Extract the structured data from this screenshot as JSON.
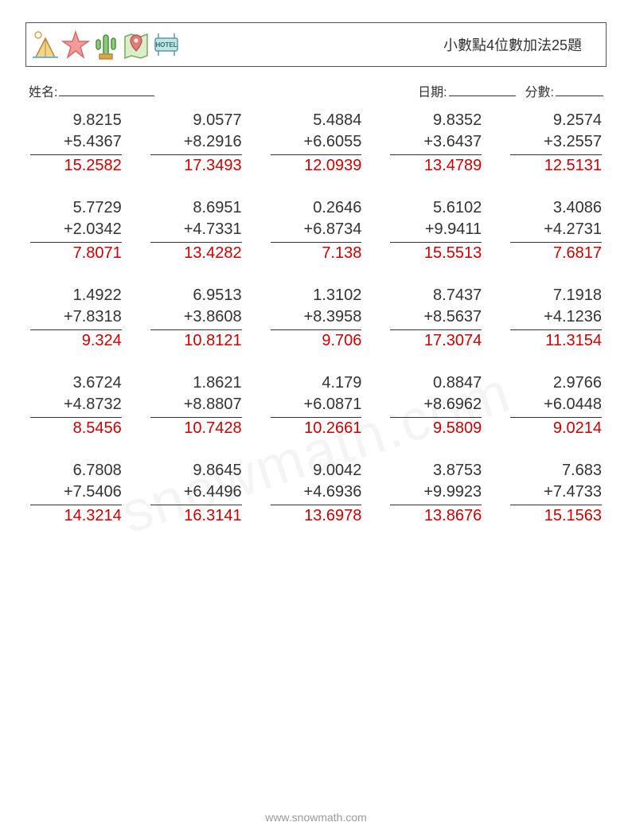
{
  "header": {
    "title": "小數點4位數加法25題"
  },
  "info": {
    "name_label": "姓名:",
    "date_label": "日期:",
    "score_label": "分數:"
  },
  "colors": {
    "text": "#333333",
    "answer": "#cc0000",
    "rule": "#333333",
    "background": "#ffffff",
    "watermark": "rgba(0,0,0,0.045)",
    "footer": "#9a9a9a"
  },
  "typography": {
    "title_fontsize": 18,
    "info_fontsize": 16,
    "problem_fontsize": 20,
    "footer_fontsize": 14,
    "problem_font": "Arial"
  },
  "layout": {
    "cols": 5,
    "rows": 5,
    "col_gap": 36,
    "row_gap": 26
  },
  "problems": [
    {
      "a": "9.8215",
      "b": "5.4367",
      "ans": "15.2582"
    },
    {
      "a": "9.0577",
      "b": "8.2916",
      "ans": "17.3493"
    },
    {
      "a": "5.4884",
      "b": "6.6055",
      "ans": "12.0939"
    },
    {
      "a": "9.8352",
      "b": "3.6437",
      "ans": "13.4789"
    },
    {
      "a": "9.2574",
      "b": "3.2557",
      "ans": "12.5131"
    },
    {
      "a": "5.7729",
      "b": "2.0342",
      "ans": "7.8071"
    },
    {
      "a": "8.6951",
      "b": "4.7331",
      "ans": "13.4282"
    },
    {
      "a": "0.2646",
      "b": "6.8734",
      "ans": "7.138"
    },
    {
      "a": "5.6102",
      "b": "9.9411",
      "ans": "15.5513"
    },
    {
      "a": "3.4086",
      "b": "4.2731",
      "ans": "7.6817"
    },
    {
      "a": "1.4922",
      "b": "7.8318",
      "ans": "9.324"
    },
    {
      "a": "6.9513",
      "b": "3.8608",
      "ans": "10.8121"
    },
    {
      "a": "1.3102",
      "b": "8.3958",
      "ans": "9.706"
    },
    {
      "a": "8.7437",
      "b": "8.5637",
      "ans": "17.3074"
    },
    {
      "a": "7.1918",
      "b": "4.1236",
      "ans": "11.3154"
    },
    {
      "a": "3.6724",
      "b": "4.8732",
      "ans": "8.5456"
    },
    {
      "a": "1.8621",
      "b": "8.8807",
      "ans": "10.7428"
    },
    {
      "a": "4.179",
      "b": "6.0871",
      "ans": "10.2661"
    },
    {
      "a": "0.8847",
      "b": "8.6962",
      "ans": "9.5809"
    },
    {
      "a": "2.9766",
      "b": "6.0448",
      "ans": "9.0214"
    },
    {
      "a": "6.7808",
      "b": "7.5406",
      "ans": "14.3214"
    },
    {
      "a": "9.8645",
      "b": "6.4496",
      "ans": "16.3141"
    },
    {
      "a": "9.0042",
      "b": "4.6936",
      "ans": "13.6978"
    },
    {
      "a": "3.8753",
      "b": "9.9923",
      "ans": "13.8676"
    },
    {
      "a": "7.683",
      "b": "7.4733",
      "ans": "15.1563"
    }
  ],
  "operator": "+",
  "footer": "www.snowmath.com",
  "watermark": "snowmath.com"
}
